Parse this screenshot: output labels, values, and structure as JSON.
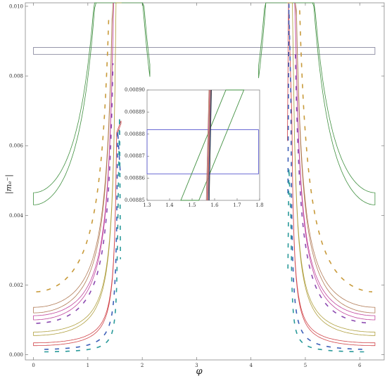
{
  "chart_data": [
    {
      "type": "line",
      "title": "",
      "xlabel": "φ",
      "ylabel": "|m_e^{(-)}|",
      "ylabel_text": "|mₑ⁻|",
      "xlim": [
        -0.15,
        6.45
      ],
      "ylim": [
        -0.00015,
        0.0101
      ],
      "xticks": [
        0,
        1,
        2,
        3,
        4,
        5,
        6
      ],
      "yticks": [
        0.0,
        0.002,
        0.004,
        0.006,
        0.008,
        0.01
      ],
      "ytick_labels": [
        "0.000",
        "0.002",
        "0.004",
        "0.006",
        "0.008",
        "0.010"
      ],
      "grid": false,
      "horizontal_band": {
        "ymin": 0.00862,
        "ymax": 0.00882,
        "color": "#8a8aa0"
      },
      "series": [
        {
          "color": "#3f8f3f",
          "style": "band",
          "k": 0.0043,
          "width": 0.00035,
          "xmin": 0,
          "xmax": 2.14,
          "mirror_xmin": 4.14,
          "mirror_xmax": 6.28
        },
        {
          "color": "#b07a55",
          "style": "band",
          "k": 0.0012,
          "width": 0.00016,
          "xmin": 0,
          "xmax": 1.65,
          "mirror_xmin": 4.63,
          "mirror_xmax": 6.28
        },
        {
          "color": "#c0439b",
          "style": "band",
          "k": 0.001,
          "width": 0.00012,
          "xmin": 0,
          "xmax": 1.64,
          "mirror_xmin": 4.64,
          "mirror_xmax": 6.28
        },
        {
          "color": "#b0a040",
          "style": "band",
          "k": 0.00055,
          "width": 0.0001,
          "xmin": 0,
          "xmax": 1.62,
          "mirror_xmin": 4.66,
          "mirror_xmax": 6.28
        },
        {
          "color": "#d0454a",
          "style": "band",
          "k": 0.00026,
          "width": 8e-05,
          "xmin": 0,
          "xmax": 1.61,
          "mirror_xmin": 4.67,
          "mirror_xmax": 6.28
        },
        {
          "color": "#c89a3a",
          "style": "dashed",
          "k": 0.0018,
          "width": 6e-05,
          "xmin": 0.05,
          "xmax": 1.62,
          "mirror_xmin": 4.66,
          "mirror_xmax": 6.23
        },
        {
          "color": "#8c4ab0",
          "style": "dashed",
          "k": 0.0009,
          "width": 6e-05,
          "xmin": 0.05,
          "xmax": 1.62,
          "mirror_xmin": 4.66,
          "mirror_xmax": 6.23
        },
        {
          "color": "#3d5fb8",
          "style": "dashed",
          "k": 0.00015,
          "width": 6e-05,
          "xmin": 0.2,
          "xmax": 1.6,
          "mirror_xmin": 4.68,
          "mirror_xmax": 6.08
        },
        {
          "color": "#2a9a9a",
          "style": "dashed",
          "k": 8e-05,
          "width": 5e-05,
          "xmin": 0.2,
          "xmax": 1.6,
          "mirror_xmin": 4.68,
          "mirror_xmax": 6.08
        }
      ]
    },
    {
      "type": "line",
      "title": "",
      "xlabel": "",
      "ylabel": "",
      "xlim": [
        1.3,
        1.8
      ],
      "ylim": [
        0.00885,
        0.0089
      ],
      "xticks": [
        1.3,
        1.4,
        1.5,
        1.6,
        1.7,
        1.8
      ],
      "yticks": [
        0.00885,
        0.00886,
        0.00887,
        0.00888,
        0.00889,
        0.0089
      ],
      "ytick_labels": [
        "0.00885",
        "0.00886",
        "0.00887",
        "0.00888",
        "0.00889",
        "0.00890"
      ],
      "grid": false,
      "rectangle": {
        "xmin": 1.3,
        "xmax": 1.795,
        "ymin": 0.008862,
        "ymax": 0.008882,
        "color": "#5a5ad0"
      },
      "green_band": {
        "x_bottom": [
          1.45,
          1.53
        ],
        "x_top": [
          1.65,
          1.73
        ],
        "color": "#3f8f3f"
      },
      "lines": [
        {
          "color": "#b07a55",
          "x_bottom": 1.563,
          "x_top": 1.575
        },
        {
          "color": "#c0439b",
          "x_bottom": 1.566,
          "x_top": 1.578
        },
        {
          "color": "#b0a040",
          "x_bottom": 1.569,
          "x_top": 1.58
        },
        {
          "color": "#d0454a",
          "x_bottom": 1.571,
          "x_top": 1.582
        },
        {
          "color": "#3d5fb8",
          "x_bottom": 1.573,
          "x_top": 1.584
        },
        {
          "color": "#222222",
          "x_bottom": 1.576,
          "x_top": 1.586
        }
      ]
    }
  ]
}
